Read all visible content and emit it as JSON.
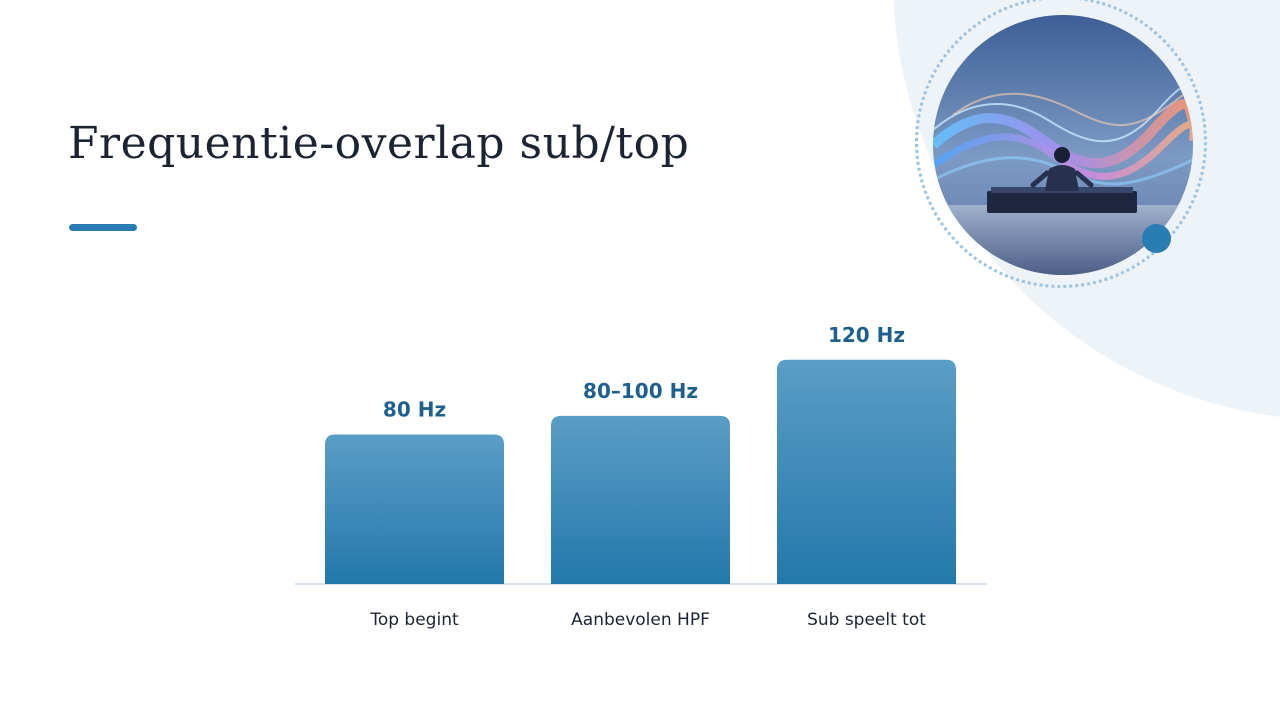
{
  "slide": {
    "title": "Frequentie-overlap sub/top"
  },
  "colors": {
    "accent": "#2a7db3",
    "bar_top": "#5a9ec6",
    "bar_bottom": "#2378ab",
    "value_text": "#1f5f8e",
    "title_text": "#1c2433",
    "baseline": "#d6e3ec"
  },
  "image": {
    "subject": "DJ at a mixing console in front of colorful sound waves"
  },
  "chart_data": {
    "type": "bar",
    "title": "",
    "xlabel": "",
    "ylabel": "",
    "categories": [
      "Top begint",
      "Aanbevolen HPF",
      "Sub speelt tot"
    ],
    "values": [
      80,
      90,
      120
    ],
    "value_labels": [
      "80 Hz",
      "80–100 Hz",
      "120 Hz"
    ],
    "ylim": [
      0,
      160
    ],
    "grid": false,
    "legend": "none"
  }
}
